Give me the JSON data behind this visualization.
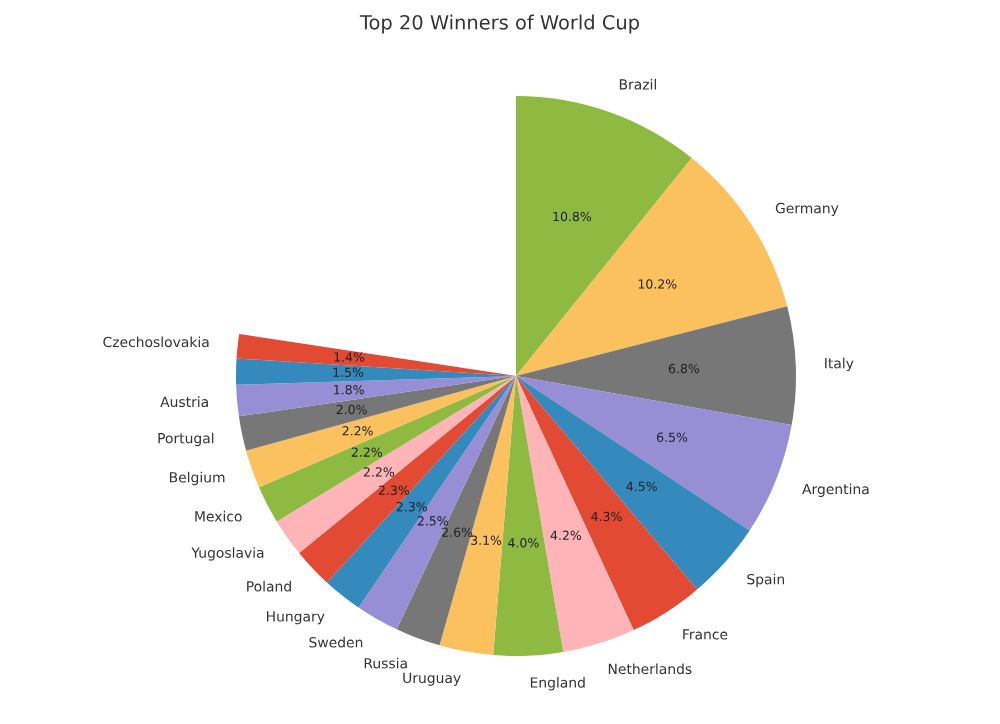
{
  "chart_data": {
    "type": "pie",
    "title": "Top 20 Winners of World Cup",
    "categories": [
      "Brazil",
      "Germany",
      "Italy",
      "Argentina",
      "Spain",
      "France",
      "Netherlands",
      "England",
      "Uruguay",
      "Russia",
      "Sweden",
      "Hungary",
      "Poland",
      "Yugoslavia",
      "Mexico",
      "Belgium",
      "Portugal",
      "Austria",
      null,
      "Czechoslovakia"
    ],
    "values": [
      10.8,
      10.2,
      6.8,
      6.5,
      4.5,
      4.3,
      4.2,
      4.0,
      3.1,
      2.6,
      2.5,
      2.3,
      2.3,
      2.2,
      2.2,
      2.2,
      2.0,
      1.8,
      1.5,
      1.4
    ],
    "value_labels": [
      "10.8%",
      "10.2%",
      "6.8%",
      "6.5%",
      "4.5%",
      "4.3%",
      "4.2%",
      "4.0%",
      "3.1%",
      "2.6%",
      "2.5%",
      "2.3%",
      "2.3%",
      "2.2%",
      "2.2%",
      "2.2%",
      "2.0%",
      "1.8%",
      "1.5%",
      "1.4%"
    ],
    "colors": [
      "#8eba42",
      "#fbc15e",
      "#777777",
      "#988ed5",
      "#348abd",
      "#e24a33",
      "#ffb5b8",
      "#8eba42",
      "#fbc15e",
      "#777777",
      "#988ed5",
      "#348abd",
      "#e24a33",
      "#ffb5b8",
      "#8eba42",
      "#fbc15e",
      "#777777",
      "#988ed5",
      "#348abd",
      "#e24a33"
    ]
  }
}
